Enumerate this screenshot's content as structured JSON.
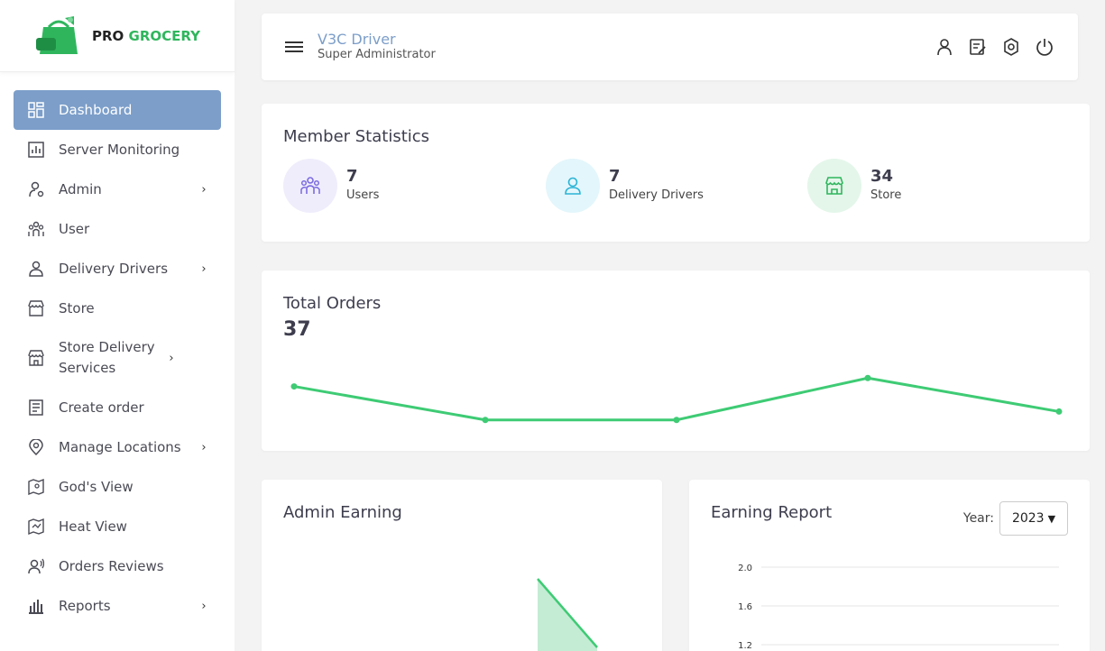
{
  "brand": {
    "pro": "PRO",
    "grocery": "GROCERY",
    "accent": "#2fb65d",
    "primary": "#7c9ec9"
  },
  "sidebar": {
    "items": [
      {
        "label": "Dashboard",
        "icon": "dashboard-icon",
        "active": true,
        "has_children": false
      },
      {
        "label": "Server Monitoring",
        "icon": "bar-chart-icon",
        "active": false,
        "has_children": false
      },
      {
        "label": "Admin",
        "icon": "admin-user-icon",
        "active": false,
        "has_children": true
      },
      {
        "label": "User",
        "icon": "users-icon",
        "active": false,
        "has_children": false
      },
      {
        "label": "Delivery Drivers",
        "icon": "driver-icon",
        "active": false,
        "has_children": true
      },
      {
        "label": "Store",
        "icon": "store-icon",
        "active": false,
        "has_children": false
      },
      {
        "label": "Store Delivery Services",
        "icon": "store-delivery-icon",
        "active": false,
        "has_children": true
      },
      {
        "label": "Create order",
        "icon": "order-list-icon",
        "active": false,
        "has_children": false
      },
      {
        "label": "Manage Locations",
        "icon": "location-pin-icon",
        "active": false,
        "has_children": true
      },
      {
        "label": "God's View",
        "icon": "map-pin-icon",
        "active": false,
        "has_children": false
      },
      {
        "label": "Heat View",
        "icon": "heat-map-icon",
        "active": false,
        "has_children": false
      },
      {
        "label": "Orders Reviews",
        "icon": "reviewer-icon",
        "active": false,
        "has_children": false
      },
      {
        "label": "Reports",
        "icon": "reports-icon",
        "active": false,
        "has_children": true
      }
    ],
    "chevron": "›"
  },
  "header": {
    "name": "V3C Driver",
    "role": "Super Administrator",
    "icons": [
      "profile-icon",
      "edit-note-icon",
      "settings-icon",
      "power-icon"
    ]
  },
  "member_stats": {
    "title": "Member Statistics",
    "items": [
      {
        "value": "7",
        "label": "Users",
        "icon": "users-group-icon",
        "bg": "#efedfb",
        "fg": "#7b6be0"
      },
      {
        "value": "7",
        "label": "Delivery Drivers",
        "icon": "driver-badge-icon",
        "bg": "#e3f6fb",
        "fg": "#2ab3d6"
      },
      {
        "value": "34",
        "label": "Store",
        "icon": "store-front-icon",
        "bg": "#e4f6ea",
        "fg": "#2fb65d"
      }
    ]
  },
  "total_orders": {
    "title": "Total Orders",
    "count": "37",
    "line_color": "#3ecb74"
  },
  "admin_earning": {
    "title": "Admin Earning"
  },
  "earning_report": {
    "title": "Earning Report",
    "year_label": "Year:",
    "year_value": "2023",
    "y_ticks": [
      "2.0",
      "1.6",
      "1.2"
    ]
  },
  "chart_data": [
    {
      "type": "line",
      "title": "Total Orders",
      "x": [
        1,
        2,
        3,
        4,
        5
      ],
      "y": [
        8,
        4,
        4,
        9,
        5
      ]
    },
    {
      "type": "area",
      "title": "Admin Earning",
      "x": [
        1,
        2
      ],
      "y": [
        10,
        7
      ]
    },
    {
      "type": "line",
      "title": "Earning Report",
      "ylim": [
        1.2,
        2.0
      ],
      "y_ticks": [
        2.0,
        1.6,
        1.2
      ]
    }
  ]
}
